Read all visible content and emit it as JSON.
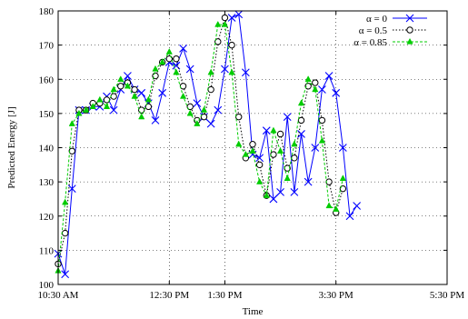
{
  "chart_data": {
    "type": "line",
    "title": "",
    "xlabel": "Time",
    "ylabel": "Predicted Energy [J]",
    "xlim": [
      0,
      28
    ],
    "ylim": [
      100,
      180
    ],
    "grid": true,
    "legend_position": "top-right",
    "x_ticks": [
      {
        "x": 0,
        "label": "10:30 AM"
      },
      {
        "x": 8,
        "label": "12:30 PM"
      },
      {
        "x": 12,
        "label": "1:30 PM"
      },
      {
        "x": 20,
        "label": "3:30 PM"
      },
      {
        "x": 28,
        "label": "5:30 PM"
      }
    ],
    "y_ticks": [
      100,
      110,
      120,
      130,
      140,
      150,
      160,
      170,
      180
    ],
    "series": [
      {
        "name": "α = 0",
        "color": "#0000ff",
        "line_style": "solid",
        "marker": "x",
        "points": [
          [
            0,
            109
          ],
          [
            0.5,
            103
          ],
          [
            1,
            128
          ],
          [
            1.5,
            151
          ],
          [
            2,
            151
          ],
          [
            2.5,
            152
          ],
          [
            3,
            152
          ],
          [
            3.5,
            155
          ],
          [
            4,
            151
          ],
          [
            4.5,
            157
          ],
          [
            5,
            161
          ],
          [
            5.5,
            157
          ],
          [
            6,
            156
          ],
          [
            6.5,
            153
          ],
          [
            7,
            148
          ],
          [
            7.5,
            156
          ],
          [
            8,
            165
          ],
          [
            8.5,
            164
          ],
          [
            9,
            169
          ],
          [
            9.5,
            163
          ],
          [
            10,
            153
          ],
          [
            10.5,
            149
          ],
          [
            11,
            147
          ],
          [
            11.5,
            151
          ],
          [
            12,
            163
          ],
          [
            12.5,
            178
          ],
          [
            13,
            179
          ],
          [
            13.5,
            162
          ],
          [
            14,
            138
          ],
          [
            14.5,
            137
          ],
          [
            15,
            145
          ],
          [
            15.5,
            125
          ],
          [
            16,
            127
          ],
          [
            16.5,
            149
          ],
          [
            17,
            127
          ],
          [
            17.5,
            144
          ],
          [
            18,
            130
          ],
          [
            18.5,
            140
          ],
          [
            19,
            157
          ],
          [
            19.5,
            161
          ],
          [
            20,
            156
          ],
          [
            20.5,
            140
          ],
          [
            21,
            120
          ],
          [
            21.5,
            123
          ]
        ]
      },
      {
        "name": "α = 0.5",
        "color": "#000000",
        "line_style": "dotted",
        "marker": "circle",
        "points": [
          [
            0,
            106
          ],
          [
            0.5,
            115
          ],
          [
            1,
            139
          ],
          [
            1.5,
            151
          ],
          [
            2,
            151
          ],
          [
            2.5,
            153
          ],
          [
            3,
            153
          ],
          [
            3.5,
            154
          ],
          [
            4,
            155
          ],
          [
            4.5,
            158
          ],
          [
            5,
            159
          ],
          [
            5.5,
            157
          ],
          [
            6,
            151
          ],
          [
            6.5,
            152
          ],
          [
            7,
            161
          ],
          [
            7.5,
            165
          ],
          [
            8,
            166
          ],
          [
            8.5,
            166
          ],
          [
            9,
            158
          ],
          [
            9.5,
            152
          ],
          [
            10,
            148
          ],
          [
            10.5,
            149
          ],
          [
            11,
            157
          ],
          [
            11.5,
            171
          ],
          [
            12,
            178
          ],
          [
            12.5,
            170
          ],
          [
            13,
            149
          ],
          [
            13.5,
            137
          ],
          [
            14,
            141
          ],
          [
            14.5,
            135
          ],
          [
            15,
            126
          ],
          [
            15.5,
            138
          ],
          [
            16,
            144
          ],
          [
            16.5,
            134
          ],
          [
            17,
            137
          ],
          [
            17.5,
            148
          ],
          [
            18,
            158
          ],
          [
            18.5,
            159
          ],
          [
            19,
            148
          ],
          [
            19.5,
            130
          ],
          [
            20,
            121
          ],
          [
            20.5,
            128
          ]
        ]
      },
      {
        "name": "α = 0.85",
        "color": "#00cc00",
        "line_style": "dashed",
        "marker": "triangle",
        "points": [
          [
            0,
            104
          ],
          [
            0.5,
            124
          ],
          [
            1,
            147
          ],
          [
            1.5,
            150
          ],
          [
            2,
            151
          ],
          [
            2.5,
            152
          ],
          [
            3,
            154
          ],
          [
            3.5,
            152
          ],
          [
            4,
            157
          ],
          [
            4.5,
            160
          ],
          [
            5,
            158
          ],
          [
            5.5,
            155
          ],
          [
            6,
            149
          ],
          [
            6.5,
            154
          ],
          [
            7,
            163
          ],
          [
            7.5,
            165
          ],
          [
            8,
            168
          ],
          [
            8.5,
            162
          ],
          [
            9,
            155
          ],
          [
            9.5,
            150
          ],
          [
            10,
            147
          ],
          [
            10.5,
            151
          ],
          [
            11,
            162
          ],
          [
            11.5,
            176
          ],
          [
            12,
            176
          ],
          [
            12.5,
            162
          ],
          [
            13,
            141
          ],
          [
            13.5,
            138
          ],
          [
            14,
            139
          ],
          [
            14.5,
            130
          ],
          [
            15,
            126
          ],
          [
            15.5,
            145
          ],
          [
            16,
            139
          ],
          [
            16.5,
            131
          ],
          [
            17,
            141
          ],
          [
            17.5,
            153
          ],
          [
            18,
            160
          ],
          [
            18.5,
            157
          ],
          [
            19,
            142
          ],
          [
            19.5,
            123
          ],
          [
            20,
            122
          ],
          [
            20.5,
            131
          ]
        ]
      }
    ]
  }
}
